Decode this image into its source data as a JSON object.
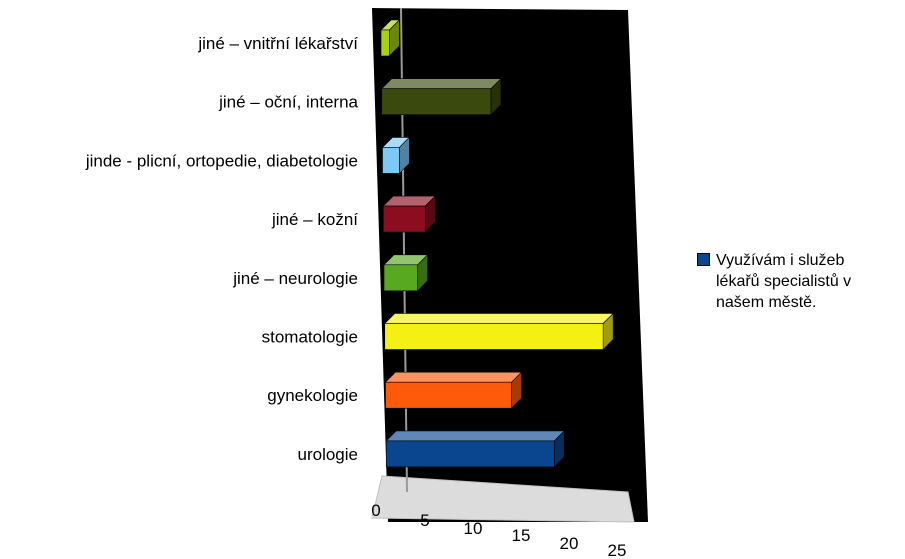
{
  "chart_data": {
    "type": "bar",
    "orientation": "horizontal",
    "three_d": true,
    "categories": [
      "jiné – vnitřní lékařství",
      "jiné – oční, interna",
      "jinde - plicní,  ortopedie, diabetologie",
      "jiné – kožní",
      "jiné – neurologie",
      "stomatologie",
      "gynekologie",
      "urologie"
    ],
    "series": [
      {
        "name": "Využívám i služeb lékařů specialistů v našem městě.",
        "values": [
          1,
          13,
          2,
          5,
          4,
          26,
          15,
          20
        ],
        "colors": [
          "#a6d012",
          "#3a4a0e",
          "#7ec8f5",
          "#8c0c20",
          "#58a820",
          "#f5f014",
          "#ff5a0a",
          "#0a4690"
        ]
      }
    ],
    "xticks": [
      "0",
      "5",
      "10",
      "15",
      "20",
      "25"
    ],
    "xlim": [
      0,
      25
    ],
    "plot_background": "#000000",
    "floor_color": "#d9d9d9",
    "legend": {
      "position": "right",
      "color": "#0a4690",
      "text": "Využívám i služeb\nlékařů specialistů v\nnašem městě."
    },
    "grid": false
  }
}
